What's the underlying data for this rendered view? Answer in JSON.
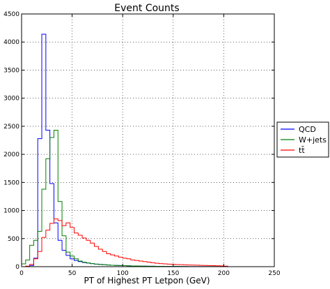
{
  "chart_data": {
    "type": "histogram-step",
    "title": "Event Counts",
    "xlabel": "PT of Highest PT Letpon (GeV)",
    "ylabel": "",
    "xlim": [
      0,
      250
    ],
    "ylim": [
      0,
      4500
    ],
    "xticks": [
      0,
      50,
      100,
      150,
      200,
      250
    ],
    "yticks": [
      0,
      500,
      1000,
      1500,
      2000,
      2500,
      3000,
      3500,
      4000,
      4500
    ],
    "grid": true,
    "legend_position": "outside-right",
    "bin_edges": [
      0,
      4,
      8,
      12,
      16,
      20,
      24,
      28,
      32,
      36,
      40,
      44,
      48,
      52,
      56,
      60,
      64,
      68,
      72,
      76,
      80,
      84,
      88,
      92,
      96,
      100,
      104,
      108,
      112,
      116,
      120,
      124,
      128,
      132,
      136,
      140,
      144,
      148,
      152,
      156,
      160,
      164,
      168,
      172,
      176,
      180,
      184,
      188,
      192,
      196,
      200,
      204
    ],
    "series": [
      {
        "name": "QCD",
        "color": "#0000ff",
        "values": [
          0,
          5,
          20,
          150,
          2280,
          4140,
          2430,
          1480,
          780,
          470,
          290,
          200,
          140,
          110,
          90,
          75,
          65,
          55,
          45,
          40,
          35,
          30,
          25,
          22,
          20,
          18,
          15,
          13,
          12,
          10,
          10,
          8,
          8,
          7,
          6,
          5,
          5,
          4,
          4,
          3,
          3,
          2,
          2,
          2,
          2,
          1,
          1,
          1,
          1,
          1,
          0
        ]
      },
      {
        "name": "W+jets",
        "color": "#008000",
        "values": [
          50,
          120,
          380,
          470,
          630,
          1380,
          1920,
          2300,
          2430,
          1160,
          550,
          260,
          190,
          140,
          100,
          80,
          65,
          55,
          45,
          40,
          35,
          30,
          25,
          22,
          20,
          18,
          15,
          13,
          12,
          10,
          10,
          8,
          8,
          7,
          6,
          5,
          5,
          4,
          4,
          3,
          3,
          2,
          2,
          2,
          2,
          1,
          1,
          1,
          1,
          1,
          0
        ]
      },
      {
        "name": "tt̄",
        "color": "#ff0000",
        "values": [
          0,
          10,
          40,
          140,
          270,
          520,
          650,
          770,
          850,
          820,
          730,
          780,
          700,
          600,
          560,
          510,
          470,
          420,
          360,
          310,
          270,
          230,
          210,
          190,
          170,
          150,
          140,
          120,
          110,
          100,
          90,
          80,
          70,
          60,
          55,
          50,
          45,
          40,
          38,
          35,
          32,
          30,
          28,
          26,
          24,
          22,
          20,
          18,
          16,
          14,
          10
        ]
      }
    ]
  }
}
